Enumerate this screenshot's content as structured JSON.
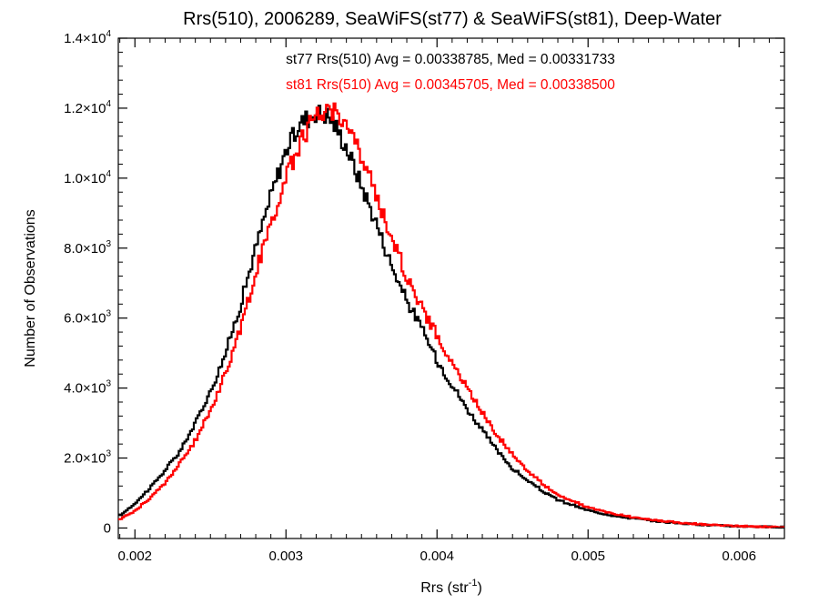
{
  "chart_data": {
    "type": "histogram-step",
    "title": "Rrs(510), 2006289, SeaWiFS(st77) & SeaWiFS(st81), Deep-Water",
    "xlabel": {
      "base": "Rrs (str",
      "sup": "-1",
      "close": ")"
    },
    "ylabel": "Number of Observations",
    "xlim": [
      0.00189,
      0.0063
    ],
    "ylim": [
      -300,
      14000
    ],
    "x_ticks": [
      {
        "value": 0.002,
        "label": "0.002"
      },
      {
        "value": 0.003,
        "label": "0.003"
      },
      {
        "value": 0.004,
        "label": "0.004"
      },
      {
        "value": 0.005,
        "label": "0.005"
      },
      {
        "value": 0.006,
        "label": "0.006"
      }
    ],
    "y_ticks": [
      {
        "value": 0,
        "mant": "0",
        "exp": ""
      },
      {
        "value": 2000,
        "mant": "2.0×10",
        "exp": "3"
      },
      {
        "value": 4000,
        "mant": "4.0×10",
        "exp": "3"
      },
      {
        "value": 6000,
        "mant": "6.0×10",
        "exp": "3"
      },
      {
        "value": 8000,
        "mant": "8.0×10",
        "exp": "3"
      },
      {
        "value": 10000,
        "mant": "1.0×10",
        "exp": "4"
      },
      {
        "value": 12000,
        "mant": "1.2×10",
        "exp": "4"
      },
      {
        "value": 14000,
        "mant": "1.4×10",
        "exp": "4"
      }
    ],
    "series": [
      {
        "color": "#000000",
        "annotation": "st77 Rrs(510) Avg = 0.00338785, Med = 0.00331733",
        "x": [
          0.0019,
          0.002,
          0.0021,
          0.0022,
          0.0023,
          0.0024,
          0.0025,
          0.0026,
          0.0027,
          0.0028,
          0.0029,
          0.003,
          0.0031,
          0.0032,
          0.00325,
          0.0033,
          0.0034,
          0.0035,
          0.0036,
          0.0037,
          0.0038,
          0.0039,
          0.004,
          0.0041,
          0.0042,
          0.0043,
          0.0044,
          0.0045,
          0.0046,
          0.0047,
          0.0048,
          0.005,
          0.0052,
          0.0055,
          0.0058,
          0.006,
          0.0063
        ],
        "y": [
          350,
          700,
          1150,
          1650,
          2200,
          3000,
          3900,
          5000,
          6400,
          8000,
          9500,
          10800,
          11600,
          11900,
          11850,
          11700,
          10900,
          9800,
          8700,
          7500,
          6500,
          5700,
          4800,
          4100,
          3400,
          2800,
          2200,
          1700,
          1350,
          1050,
          800,
          500,
          330,
          170,
          80,
          50,
          20
        ]
      },
      {
        "color": "#ff0000",
        "annotation": "st81 Rrs(510) Avg = 0.00345705, Med = 0.00338500",
        "x": [
          0.0019,
          0.002,
          0.0021,
          0.0022,
          0.0023,
          0.0024,
          0.0025,
          0.0026,
          0.0027,
          0.0028,
          0.0029,
          0.003,
          0.0031,
          0.0032,
          0.0033,
          0.00335,
          0.0034,
          0.0035,
          0.0036,
          0.0037,
          0.0038,
          0.0039,
          0.004,
          0.0041,
          0.0042,
          0.0043,
          0.0044,
          0.0045,
          0.0046,
          0.0047,
          0.0048,
          0.005,
          0.0052,
          0.0055,
          0.0058,
          0.006,
          0.0063
        ],
        "y": [
          250,
          500,
          850,
          1300,
          1850,
          2500,
          3350,
          4450,
          5700,
          7300,
          8700,
          10000,
          11100,
          11800,
          12000,
          11850,
          11550,
          10600,
          9500,
          8300,
          7200,
          6300,
          5500,
          4700,
          4000,
          3300,
          2650,
          2100,
          1650,
          1250,
          950,
          580,
          370,
          190,
          90,
          55,
          25
        ]
      }
    ]
  }
}
